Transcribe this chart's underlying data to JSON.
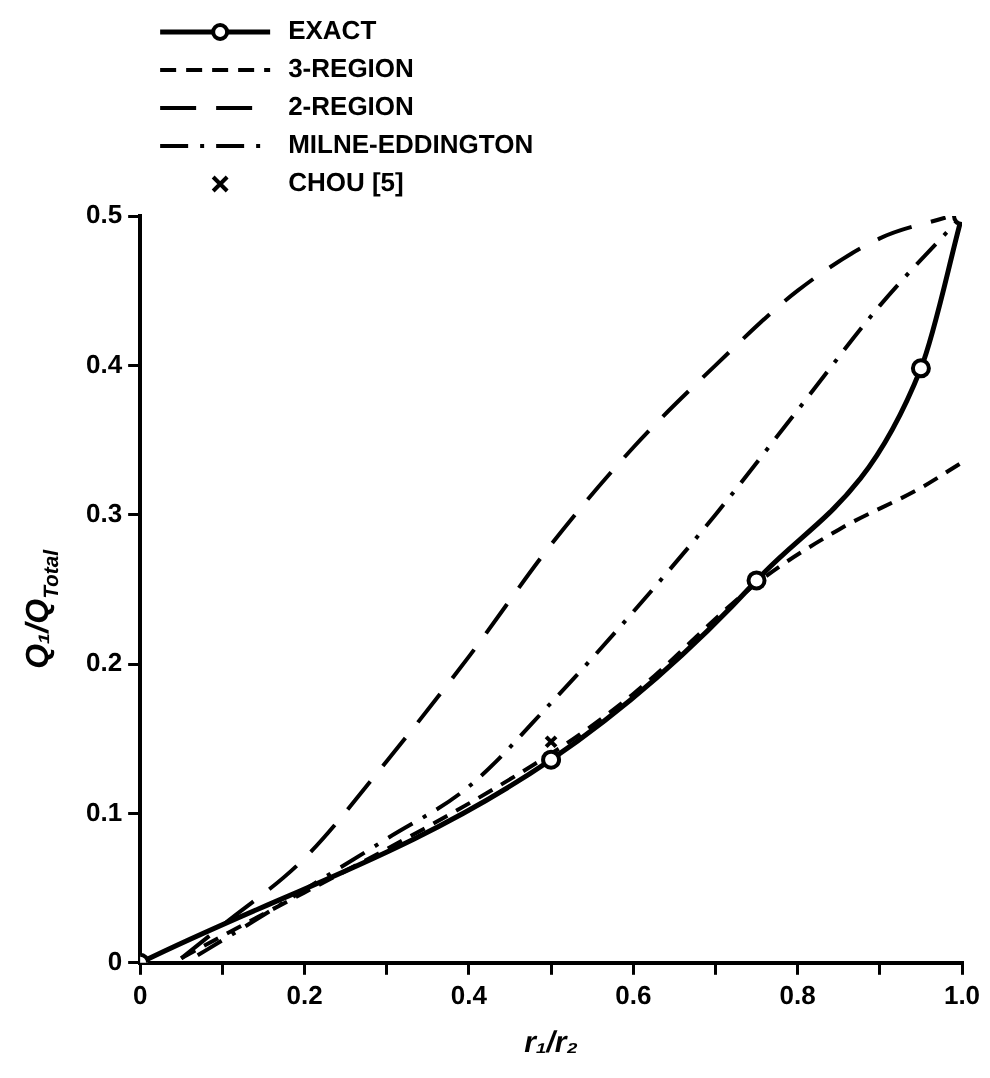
{
  "chart_data": {
    "type": "line",
    "xlabel": "r₁/r₂",
    "ylabel": "Q₁/Q$_{Total}$",
    "xlim": [
      0,
      1.0
    ],
    "ylim": [
      0,
      0.5
    ],
    "xticks": [
      0,
      {
        "value": 0.1,
        "label": null
      },
      0.2,
      {
        "value": 0.3,
        "label": null
      },
      0.4,
      {
        "value": 0.5,
        "label": null
      },
      0.6,
      {
        "value": 0.7,
        "label": null
      },
      0.8,
      {
        "value": 0.9,
        "label": null
      },
      {
        "value": 1.0,
        "label": "1.0"
      }
    ],
    "yticks": [
      0,
      0.1,
      0.2,
      0.3,
      0.4,
      0.5
    ],
    "grid": false,
    "legend": "top left",
    "series": [
      {
        "name": "EXACT",
        "color": "#000000",
        "marker": "circle",
        "line_style": "solid",
        "x": [
          0,
          0.5,
          0.75,
          0.95,
          1.0
        ],
        "values": [
          0,
          0.136,
          0.256,
          0.398,
          0.5
        ]
      },
      {
        "name": "3-REGION",
        "color": "#000000",
        "marker": "none",
        "line_style": "dashed",
        "x": [
          0.05,
          0.5,
          0.6,
          0.75,
          0.85,
          0.95,
          1.0
        ],
        "values": [
          0.003,
          0.14,
          0.18,
          0.254,
          0.29,
          0.318,
          0.335
        ]
      },
      {
        "name": "2-REGION",
        "color": "#000000",
        "marker": "none",
        "line_style": "dashed",
        "x": [
          0.05,
          0.1,
          0.2,
          0.3,
          0.4,
          0.5,
          0.6,
          0.7,
          0.8,
          0.9,
          0.98
        ],
        "values": [
          0.003,
          0.025,
          0.07,
          0.135,
          0.205,
          0.28,
          0.345,
          0.4,
          0.45,
          0.485,
          0.499
        ]
      },
      {
        "name": "MILNE-EDDINGTON",
        "color": "#000000",
        "marker": "none",
        "line_style": "dashdot",
        "x": [
          0.07,
          0.1,
          0.2,
          0.3,
          0.4,
          0.5,
          0.6,
          0.7,
          0.8,
          0.9,
          1.0
        ],
        "values": [
          0.005,
          0.015,
          0.049,
          0.083,
          0.118,
          0.174,
          0.235,
          0.3,
          0.37,
          0.44,
          0.5
        ]
      },
      {
        "name": "CHOU [5]",
        "type": "scatter",
        "color": "#000000",
        "marker": "cross",
        "x": [
          0.5
        ],
        "values": [
          0.148
        ]
      }
    ]
  }
}
